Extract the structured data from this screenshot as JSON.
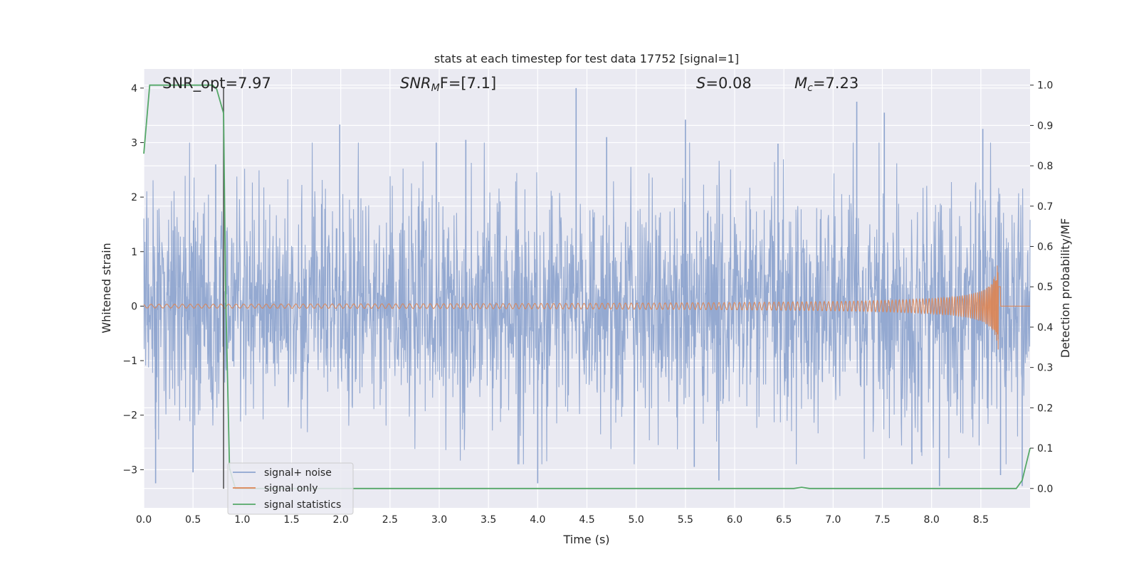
{
  "chart_data": {
    "type": "line",
    "title": "stats at each timestep for test data 17752 [signal=1]",
    "xlabel": "Time (s)",
    "ylabel": "Whitened strain",
    "y2label": "Detection probability/MF",
    "xlim": [
      0.0,
      9.0
    ],
    "ylim": [
      -3.7,
      4.35
    ],
    "y2lim": [
      -0.048,
      1.04
    ],
    "xticks": [
      0.0,
      0.5,
      1.0,
      1.5,
      2.0,
      2.5,
      3.0,
      3.5,
      4.0,
      4.5,
      5.0,
      5.5,
      6.0,
      6.5,
      7.0,
      7.5,
      8.0,
      8.5
    ],
    "xtick_labels": [
      "0.0",
      "0.5",
      "1.0",
      "1.5",
      "2.0",
      "2.5",
      "3.0",
      "3.5",
      "4.0",
      "4.5",
      "5.0",
      "5.5",
      "6.0",
      "6.5",
      "7.0",
      "7.5",
      "8.0",
      "8.5"
    ],
    "yticks": [
      -3,
      -2,
      -1,
      0,
      1,
      2,
      3,
      4
    ],
    "ytick_labels": [
      "−3",
      "−2",
      "−1",
      "0",
      "1",
      "2",
      "3",
      "4"
    ],
    "y2ticks": [
      0.0,
      0.1,
      0.2,
      0.3,
      0.4,
      0.5,
      0.6,
      0.7,
      0.8,
      0.9,
      1.0
    ],
    "y2tick_labels": [
      "0.0",
      "0.1",
      "0.2",
      "0.3",
      "0.4",
      "0.5",
      "0.6",
      "0.7",
      "0.8",
      "0.9",
      "1.0"
    ],
    "grid": true,
    "legend_placement": "lower-left",
    "annotations": {
      "snr_opt": "SNR_opt=7.97",
      "snr_mf_label": "SNR",
      "snr_mf_sub": "M",
      "snr_mf_rest": "F=[7.1]",
      "s_label": "S",
      "s_value": "=0.08",
      "mc_label": "M",
      "mc_sub": "c",
      "mc_value": "=7.23"
    },
    "vline_x": 0.81,
    "series": [
      {
        "name": "signal+ noise",
        "color": "#8fa5cf",
        "axis": "left",
        "kind": "noise",
        "note_range": [
          -3.3,
          4.0
        ],
        "spikes": [
          {
            "x": 0.12,
            "y": -3.25
          },
          {
            "x": 0.5,
            "y": -3.05
          },
          {
            "x": 0.73,
            "y": 2.6
          },
          {
            "x": 1.99,
            "y": 3.33
          },
          {
            "x": 2.97,
            "y": 3.0
          },
          {
            "x": 3.27,
            "y": 3.05
          },
          {
            "x": 4.0,
            "y": -3.25
          },
          {
            "x": 4.39,
            "y": 4.0
          },
          {
            "x": 4.7,
            "y": 3.1
          },
          {
            "x": 5.5,
            "y": 3.42
          },
          {
            "x": 5.59,
            "y": -2.95
          },
          {
            "x": 5.84,
            "y": -3.2
          },
          {
            "x": 6.44,
            "y": 2.98
          },
          {
            "x": 7.24,
            "y": 3.75
          },
          {
            "x": 7.52,
            "y": 3.55
          },
          {
            "x": 7.8,
            "y": -2.9
          },
          {
            "x": 8.08,
            "y": -3.3
          },
          {
            "x": 8.52,
            "y": 3.25
          },
          {
            "x": 8.7,
            "y": -3.1
          },
          {
            "x": 8.92,
            "y": -3.3
          }
        ]
      },
      {
        "name": "signal only",
        "color": "#dd8452",
        "axis": "left",
        "kind": "chirp",
        "merger_x": 8.68,
        "peak_amplitude": 1.0,
        "min_peak": -0.95
      },
      {
        "name": "signal statistics",
        "color": "#55a868",
        "axis": "right",
        "kind": "line",
        "x": [
          0.0,
          0.06,
          0.12,
          0.3,
          0.5,
          0.7,
          0.74,
          0.81,
          0.83,
          0.87,
          0.93,
          6.6,
          6.68,
          6.76,
          8.86,
          8.92,
          9.0
        ],
        "y": [
          0.83,
          1.0,
          1.0,
          1.0,
          1.0,
          1.0,
          0.99,
          0.93,
          0.5,
          0.05,
          0.0,
          0.0,
          0.003,
          0.0,
          0.0,
          0.02,
          0.1
        ]
      }
    ]
  }
}
